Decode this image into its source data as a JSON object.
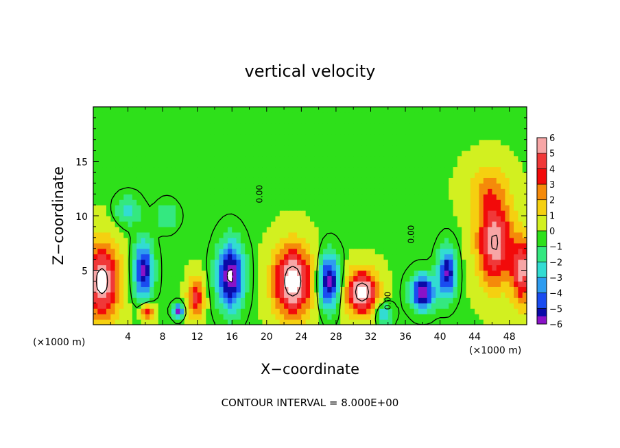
{
  "chart_data": {
    "type": "heatmap",
    "title": "vertical velocity",
    "xlabel": "X−coordinate",
    "ylabel": "Z−coordinate",
    "x_unit_label": "(×1000 m)",
    "xlim": [
      0,
      50
    ],
    "ylim": [
      0,
      20
    ],
    "x_ticks": [
      4,
      8,
      12,
      16,
      20,
      24,
      28,
      32,
      36,
      40,
      44,
      48
    ],
    "x_tick_labels": [
      "4",
      "8",
      "12",
      "16",
      "20",
      "24",
      "28",
      "32",
      "36",
      "40",
      "44",
      "48"
    ],
    "y_ticks": [
      5,
      10,
      15
    ],
    "y_tick_labels": [
      "5",
      "10",
      "15"
    ],
    "contour_labels": [
      {
        "text": "0.00",
        "x": 19.5,
        "z": 12.0
      },
      {
        "text": "0.00",
        "x": 34.3,
        "z": 2.2
      },
      {
        "text": "0.00",
        "x": 37.0,
        "z": 8.3
      }
    ],
    "colorbar": {
      "levels": [
        6,
        5,
        4,
        3,
        2,
        1,
        0,
        -1,
        -2,
        -3,
        -4,
        -5,
        -6
      ],
      "labels": [
        "6",
        "5",
        "4",
        "3",
        "2",
        "1",
        "0",
        "−1",
        "−2",
        "−3",
        "−4",
        "−5",
        "−6"
      ],
      "colors": [
        "#f7a6a6",
        "#f03838",
        "#f20a0a",
        "#f58a0a",
        "#f5d010",
        "#d2f020",
        "#2ee01a",
        "#34e880",
        "#32dcd2",
        "#2e9cf0",
        "#1a4cf0",
        "#0a0aa8",
        "#8a12c8"
      ]
    },
    "features": [
      {
        "x": 1.0,
        "z": 4.0,
        "sx": 2.0,
        "sz": 3.5,
        "w": 6.5
      },
      {
        "x": 5.8,
        "z": 5.0,
        "sx": 1.1,
        "sz": 2.6,
        "w": -6.0
      },
      {
        "x": 4.0,
        "z": 10.5,
        "sx": 1.4,
        "sz": 1.3,
        "w": -2.5
      },
      {
        "x": 8.5,
        "z": 10.0,
        "sx": 1.2,
        "sz": 1.2,
        "w": -2.0
      },
      {
        "x": 6.2,
        "z": 1.2,
        "sx": 0.8,
        "sz": 0.8,
        "w": 4.0
      },
      {
        "x": 9.8,
        "z": 1.3,
        "sx": 0.6,
        "sz": 0.6,
        "w": -6.0
      },
      {
        "x": 11.8,
        "z": 2.5,
        "sx": 0.9,
        "sz": 1.8,
        "w": 4.5
      },
      {
        "x": 15.8,
        "z": 4.5,
        "sx": 1.5,
        "sz": 3.0,
        "w": -7.0
      },
      {
        "x": 23.0,
        "z": 4.0,
        "sx": 2.2,
        "sz": 3.2,
        "w": 7.0
      },
      {
        "x": 27.2,
        "z": 4.0,
        "sx": 1.2,
        "sz": 2.4,
        "w": -6.5
      },
      {
        "x": 31.0,
        "z": 3.0,
        "sx": 1.8,
        "sz": 2.0,
        "w": 7.0
      },
      {
        "x": 38.0,
        "z": 3.0,
        "sx": 1.4,
        "sz": 1.6,
        "w": -6.5
      },
      {
        "x": 40.8,
        "z": 4.8,
        "sx": 1.0,
        "sz": 2.2,
        "w": -6.0
      },
      {
        "x": 46.3,
        "z": 7.5,
        "sx": 2.0,
        "sz": 3.8,
        "w": 6.0
      },
      {
        "x": 49.5,
        "z": 5.0,
        "sx": 1.2,
        "sz": 3.0,
        "w": 5.5
      },
      {
        "x": 45.5,
        "z": 12.5,
        "sx": 2.5,
        "sz": 2.5,
        "w": 2.0
      },
      {
        "x": 33.5,
        "z": 1.0,
        "sx": 1.0,
        "sz": 1.0,
        "w": -3.0
      }
    ]
  },
  "footer": {
    "contour_interval": "CONTOUR INTERVAL = 8.000E+00"
  }
}
